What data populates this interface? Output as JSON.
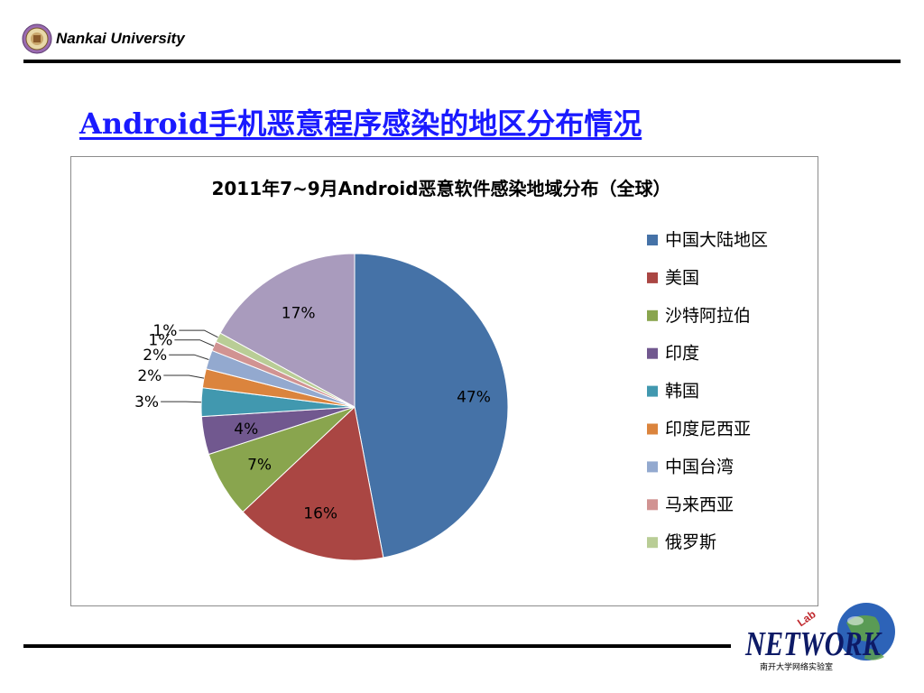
{
  "header": {
    "university": "Nankai University"
  },
  "slide": {
    "title": "Android手机恶意程序感染的地区分布情况"
  },
  "footer": {
    "lab_logo_text": "NETWORK",
    "lab_logo_sub": "南开大学网络实验室",
    "lab_logo_tag": "Lab"
  },
  "colors": {
    "title": "#1a1aff",
    "series": [
      "#4572a7",
      "#aa4643",
      "#89a54e",
      "#71588f",
      "#4198af",
      "#db843d",
      "#93a9cf",
      "#d19392",
      "#b9cd96",
      "#a99bbd"
    ]
  },
  "chart_data": {
    "type": "pie",
    "title": "2011年7~9月Android恶意软件感染地域分布（全球）",
    "categories": [
      "中国大陆地区",
      "美国",
      "沙特阿拉伯",
      "印度",
      "韩国",
      "印度尼西亚",
      "中国台湾",
      "马来西亚",
      "俄罗斯",
      ""
    ],
    "values": [
      47,
      16,
      7,
      4,
      3,
      2,
      2,
      1,
      1,
      17
    ],
    "data_labels": [
      "47%",
      "16%",
      "7%",
      "4%",
      "3%",
      "2%",
      "2%",
      "1%",
      "1%",
      "17%"
    ],
    "legend_position": "right",
    "legend_entries": [
      "中国大陆地区",
      "美国",
      "沙特阿拉伯",
      "印度",
      "韩国",
      "印度尼西亚",
      "中国台湾",
      "马来西亚",
      "俄罗斯"
    ]
  }
}
